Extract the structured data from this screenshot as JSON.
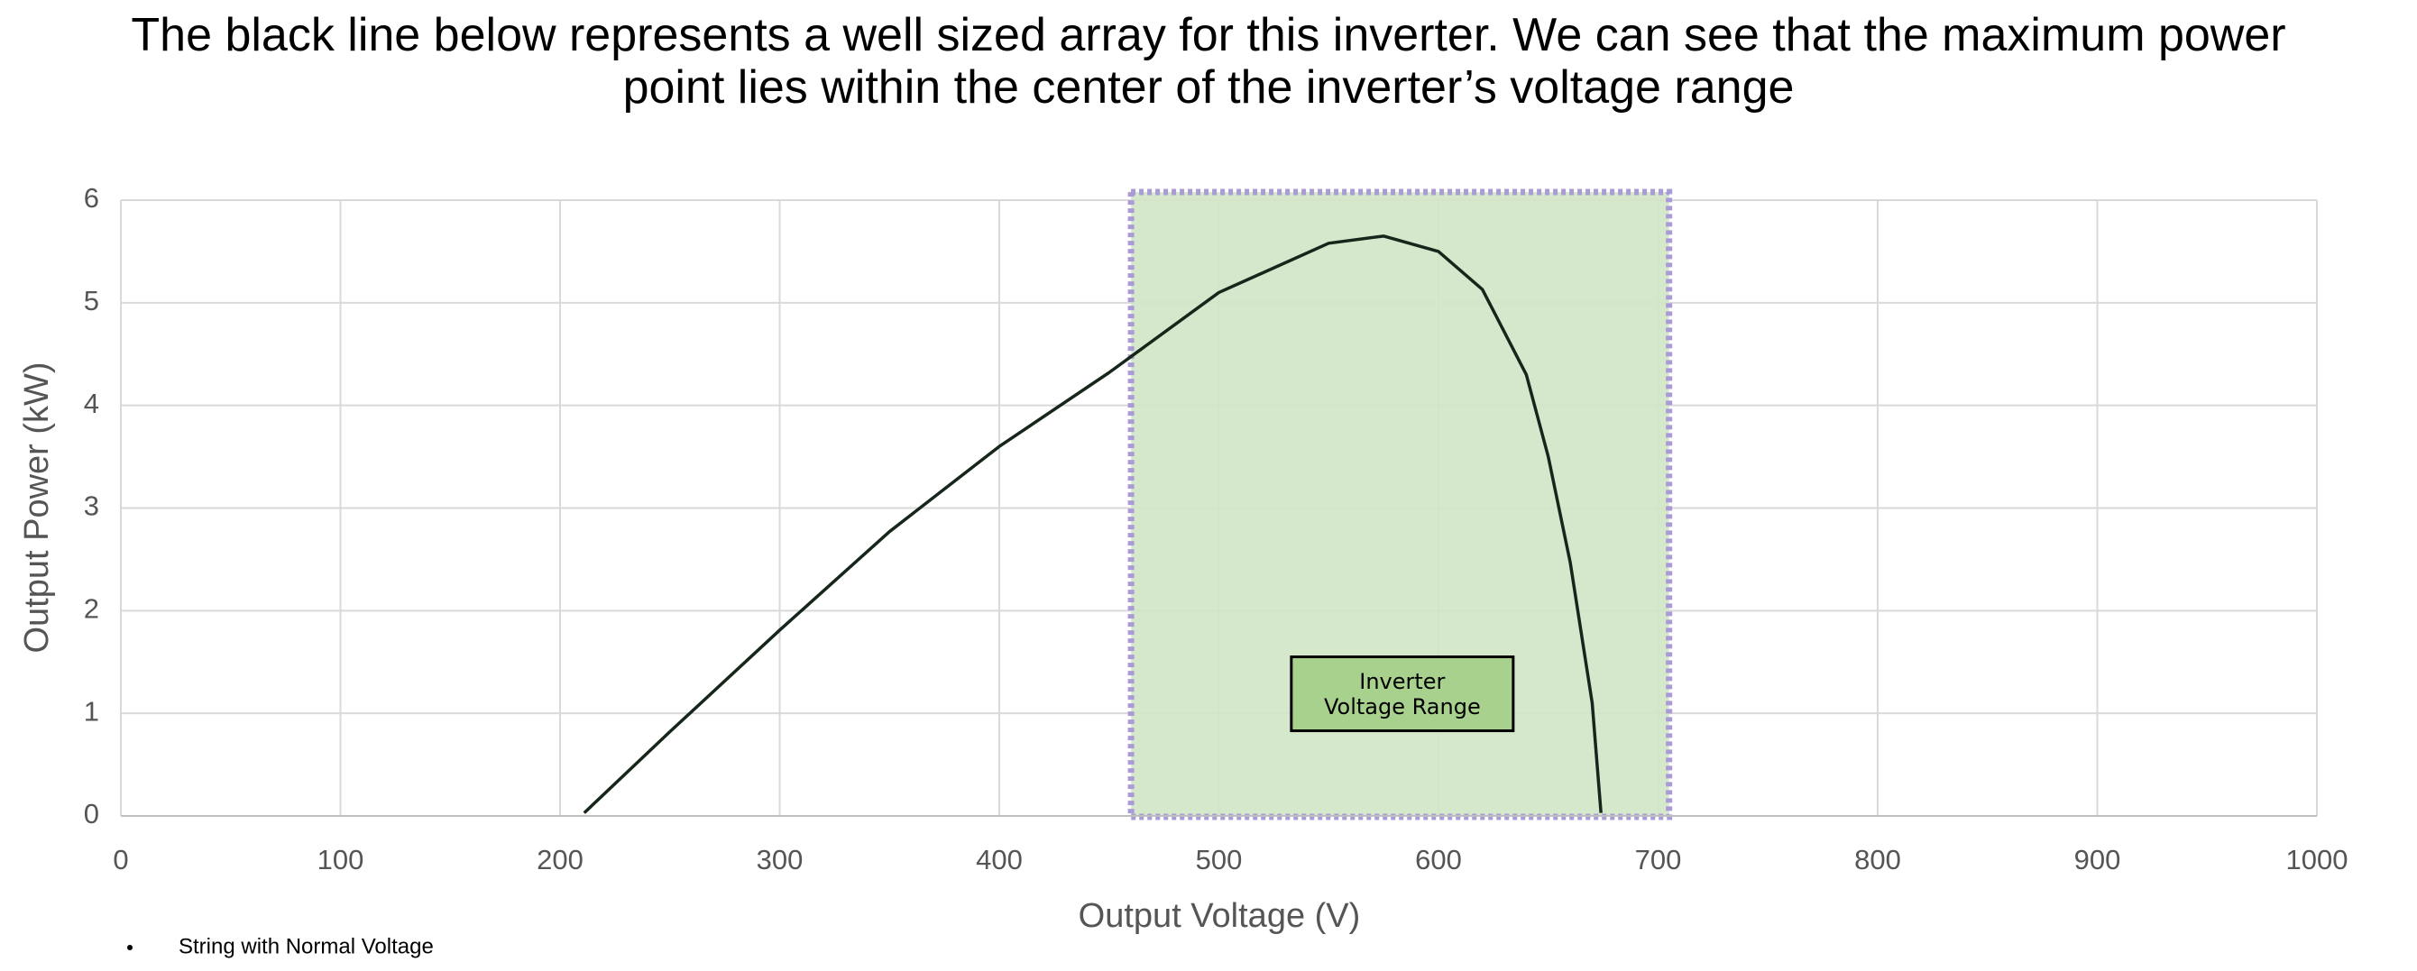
{
  "chart_data": {
    "type": "line",
    "title": "The black line below represents a well sized array for this inverter. We can see that the maximum power point lies within the center of the inverter’s voltage range",
    "x_label": "Output Voltage (V)",
    "y_label": "Output Power (kW)",
    "xlim": [
      0,
      1000
    ],
    "xticks": [
      0,
      100,
      200,
      300,
      400,
      500,
      600,
      700,
      800,
      900,
      1000
    ],
    "ylim": [
      0,
      6
    ],
    "yticks": [
      0,
      1,
      2,
      3,
      4,
      5,
      6
    ],
    "grid": true,
    "x": [
      211,
      250,
      300,
      350,
      400,
      450,
      500,
      550,
      575,
      600,
      620,
      640,
      650,
      660,
      670,
      674
    ],
    "series": [
      {
        "name": "String with Normal Voltage",
        "color": "#16261a",
        "values": [
          0.03,
          0.82,
          1.81,
          2.77,
          3.6,
          4.32,
          5.1,
          5.58,
          5.65,
          5.5,
          5.13,
          4.3,
          3.5,
          2.47,
          1.1,
          0.03
        ]
      }
    ],
    "shaded_range": {
      "x": [
        460,
        705
      ],
      "color": "#d1e5c6",
      "border_color": "#a99bd6"
    },
    "annotation": "Inverter Voltage Range",
    "legend": "bottom-left"
  }
}
